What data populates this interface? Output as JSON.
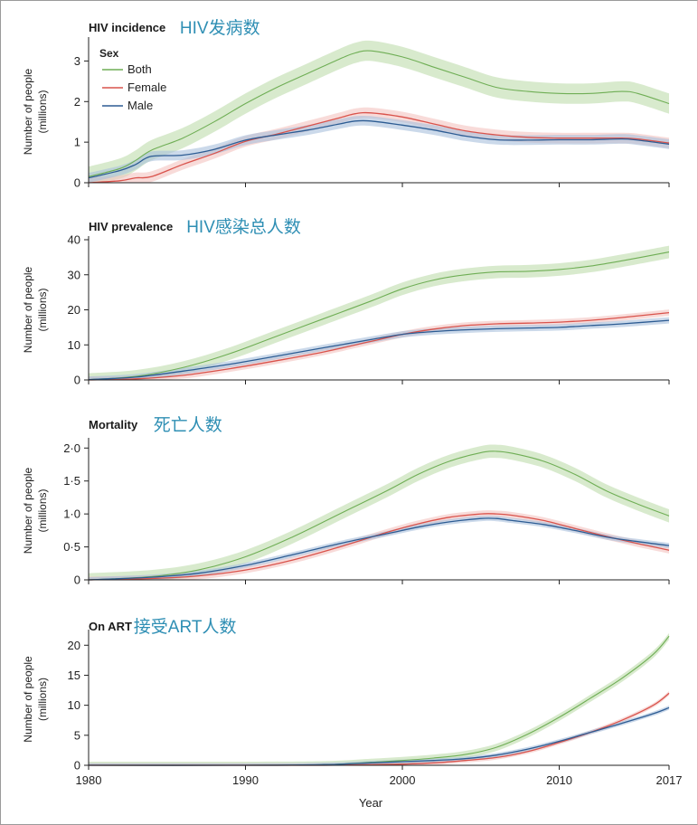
{
  "colors": {
    "both": "#6fae55",
    "female": "#d9534c",
    "male": "#2d5c93",
    "both_band": "#cbe3bc",
    "female_band": "#f4c3bf",
    "male_band": "#a9bfdc"
  },
  "legend": {
    "title": "Sex",
    "entries": [
      "Both",
      "Female",
      "Male"
    ]
  },
  "x_axis": {
    "label": "Year",
    "ticks": [
      "1980",
      "1990",
      "2000",
      "2010",
      "2017"
    ]
  },
  "chart_data": [
    {
      "type": "line",
      "title": "HIV incidence",
      "title_zh": "HIV发病数",
      "ylabel": "Number of people",
      "ylabel_unit": "(millions)",
      "ylim": [
        0,
        3.5
      ],
      "yticks": [
        0,
        1,
        2,
        3
      ],
      "ytick_labels": [
        "0",
        "1",
        "2",
        "3"
      ],
      "x": [
        1980,
        1982,
        1983,
        1984,
        1986,
        1988,
        1990,
        1992,
        1994,
        1996,
        1997,
        1998,
        2000,
        2002,
        2004,
        2006,
        2008,
        2010,
        2012,
        2014,
        2015,
        2017
      ],
      "series": [
        {
          "name": "Both",
          "values": [
            0.15,
            0.35,
            0.55,
            0.8,
            1.1,
            1.5,
            1.95,
            2.35,
            2.7,
            3.05,
            3.2,
            3.25,
            3.1,
            2.85,
            2.6,
            2.35,
            2.25,
            2.2,
            2.2,
            2.25,
            2.2,
            1.95
          ],
          "band": 0.25
        },
        {
          "name": "Female",
          "values": [
            0.0,
            0.05,
            0.12,
            0.15,
            0.45,
            0.72,
            1.02,
            1.2,
            1.4,
            1.6,
            1.7,
            1.72,
            1.62,
            1.45,
            1.28,
            1.18,
            1.12,
            1.1,
            1.1,
            1.1,
            1.08,
            0.98
          ],
          "band": 0.13
        },
        {
          "name": "Male",
          "values": [
            0.12,
            0.3,
            0.45,
            0.65,
            0.68,
            0.82,
            1.05,
            1.18,
            1.3,
            1.45,
            1.52,
            1.52,
            1.42,
            1.3,
            1.15,
            1.06,
            1.05,
            1.06,
            1.06,
            1.08,
            1.05,
            0.95
          ],
          "band": 0.12
        }
      ]
    },
    {
      "type": "line",
      "title": "HIV prevalence",
      "title_zh": "HIV感染总人数",
      "ylabel": "Number of people",
      "ylabel_unit": "(millions)",
      "ylim": [
        0,
        40
      ],
      "yticks": [
        0,
        10,
        20,
        30,
        40
      ],
      "ytick_labels": [
        "0",
        "10",
        "20",
        "30",
        "40"
      ],
      "x": [
        1980,
        1983,
        1986,
        1989,
        1992,
        1995,
        1998,
        2000,
        2002,
        2004,
        2006,
        2008,
        2010,
        2012,
        2014,
        2017
      ],
      "series": [
        {
          "name": "Both",
          "values": [
            0.1,
            1.0,
            3.5,
            7.5,
            12.5,
            17.5,
            22.5,
            26.0,
            28.5,
            30.0,
            30.8,
            31.0,
            31.5,
            32.5,
            34.0,
            36.5
          ],
          "band": 1.8
        },
        {
          "name": "Female",
          "values": [
            0.0,
            0.3,
            1.3,
            3.2,
            5.5,
            8.0,
            11.0,
            13.0,
            14.5,
            15.5,
            16.0,
            16.2,
            16.5,
            17.0,
            17.8,
            19.2
          ],
          "band": 0.9
        },
        {
          "name": "Male",
          "values": [
            0.1,
            0.8,
            2.5,
            4.5,
            6.8,
            9.2,
            11.5,
            13.0,
            13.8,
            14.3,
            14.6,
            14.8,
            15.0,
            15.5,
            16.0,
            17.0
          ],
          "band": 0.9
        }
      ]
    },
    {
      "type": "line",
      "title": "Mortality",
      "title_zh": "死亡人数",
      "ylabel": "Number of people",
      "ylabel_unit": "(millions)",
      "ylim": [
        0,
        2.1
      ],
      "yticks": [
        0,
        0.5,
        1.0,
        1.5,
        2.0
      ],
      "ytick_labels": [
        "0",
        "0·5",
        "1·0",
        "1·5",
        "2·0"
      ],
      "x": [
        1980,
        1984,
        1987,
        1990,
        1993,
        1996,
        1999,
        2001,
        2003,
        2005,
        2006,
        2007,
        2009,
        2011,
        2013,
        2015,
        2017
      ],
      "series": [
        {
          "name": "Both",
          "values": [
            0.0,
            0.05,
            0.15,
            0.35,
            0.65,
            1.0,
            1.35,
            1.6,
            1.8,
            1.93,
            1.95,
            1.92,
            1.8,
            1.6,
            1.35,
            1.15,
            0.97
          ],
          "band": 0.1
        },
        {
          "name": "Female",
          "values": [
            0.0,
            0.02,
            0.06,
            0.15,
            0.3,
            0.5,
            0.72,
            0.85,
            0.95,
            1.0,
            1.0,
            0.98,
            0.9,
            0.78,
            0.66,
            0.55,
            0.45
          ],
          "band": 0.05
        },
        {
          "name": "Male",
          "values": [
            0.0,
            0.04,
            0.1,
            0.22,
            0.38,
            0.55,
            0.7,
            0.8,
            0.88,
            0.93,
            0.93,
            0.9,
            0.84,
            0.75,
            0.65,
            0.58,
            0.52
          ],
          "band": 0.04
        }
      ]
    },
    {
      "type": "line",
      "title": "On ART",
      "title_zh": "接受ART人数",
      "ylabel": "Number of people",
      "ylabel_unit": "(millions)",
      "ylim": [
        0,
        22
      ],
      "yticks": [
        0,
        5,
        10,
        15,
        20
      ],
      "ytick_labels": [
        "0",
        "5",
        "10",
        "15",
        "20"
      ],
      "x": [
        1980,
        1990,
        1995,
        1998,
        2000,
        2002,
        2004,
        2006,
        2008,
        2010,
        2012,
        2014,
        2016,
        2017
      ],
      "series": [
        {
          "name": "Both",
          "values": [
            0.0,
            0.0,
            0.1,
            0.5,
            0.8,
            1.2,
            1.8,
            3.0,
            5.2,
            8.0,
            11.2,
            14.5,
            18.5,
            21.5
          ],
          "band": 0.6
        },
        {
          "name": "Female",
          "values": [
            0.0,
            0.0,
            0.0,
            0.1,
            0.2,
            0.4,
            0.8,
            1.3,
            2.3,
            3.8,
            5.5,
            7.5,
            10.0,
            12.0
          ],
          "band": 0.35
        },
        {
          "name": "Male",
          "values": [
            0.0,
            0.0,
            0.1,
            0.4,
            0.6,
            0.8,
            1.1,
            1.7,
            2.7,
            4.0,
            5.5,
            7.0,
            8.6,
            9.6
          ],
          "band": 0.35
        }
      ]
    }
  ]
}
